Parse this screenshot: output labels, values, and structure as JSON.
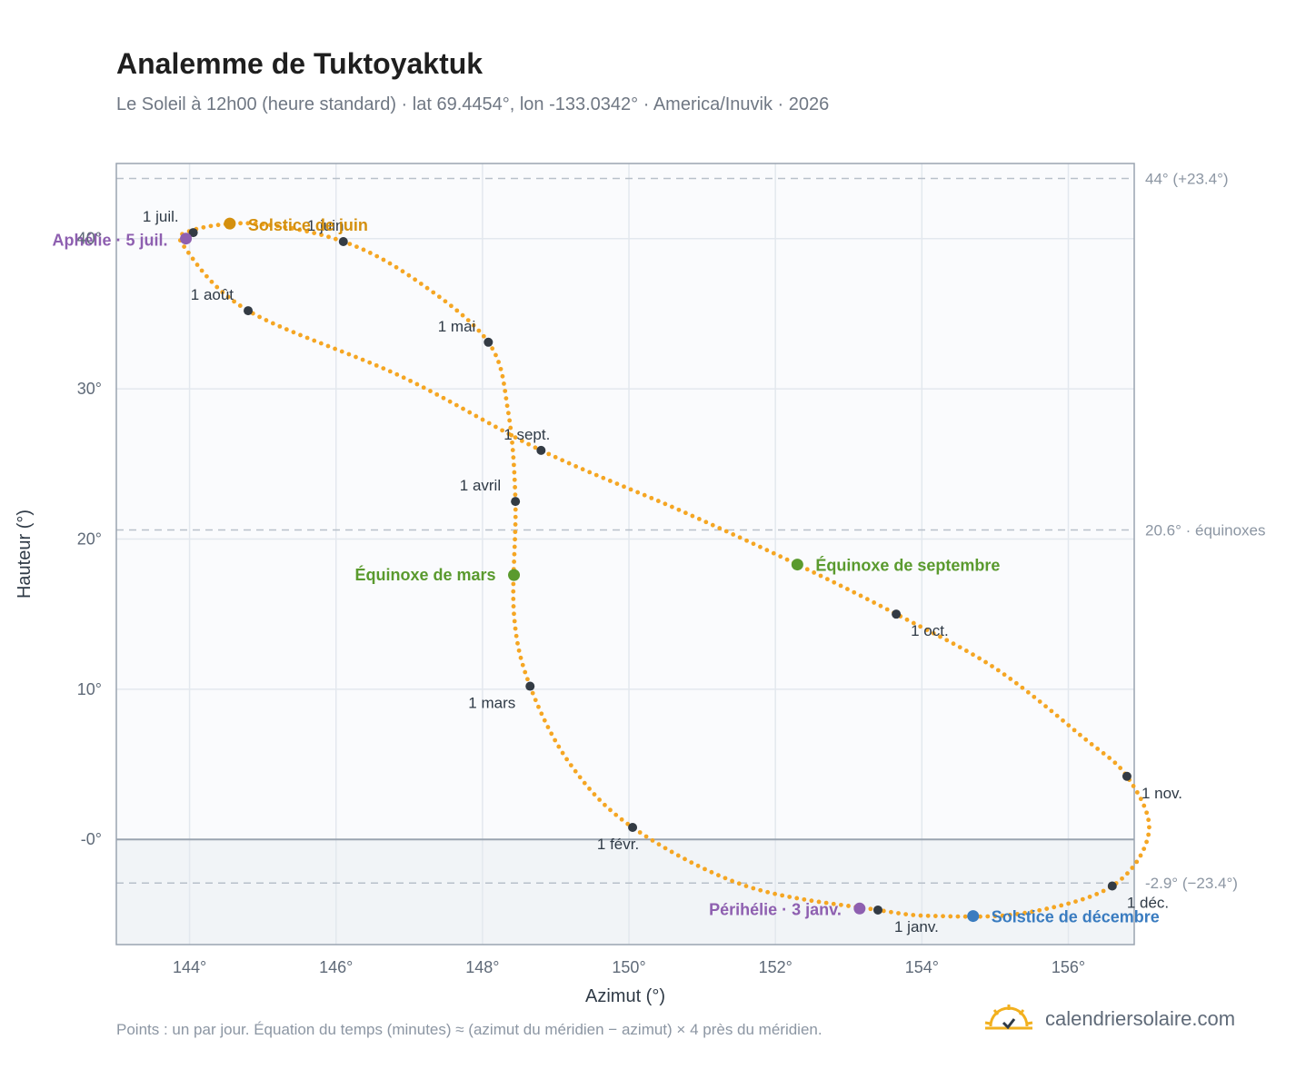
{
  "header": {
    "title": "Analemme de Tuktoyaktuk",
    "subtitle": "Le Soleil à 12h00 (heure standard) · lat 69.4454°, lon -133.0342° · America/Inuvik · 2026"
  },
  "footer": {
    "note": "Points : un par jour. Équation du temps (minutes) ≈ (azimut du méridien − azimut) × 4 près du méridien.",
    "brand": "calendriersolaire.com"
  },
  "colors": {
    "curve": "#f5a623",
    "month_point": "#333b44",
    "equinox": "#5a9a2e",
    "june_solstice": "#d4900e",
    "december_solstice": "#3a7cc0",
    "aphelion_perihelion": "#8e5fb0",
    "grid": "#e3e8ee",
    "frame": "#9aa4b0",
    "below_horizon": "#f1f4f7",
    "plot_bg": "#fafbfd"
  },
  "chart_data": {
    "type": "scatter",
    "title": "Analemme de Tuktoyaktuk",
    "xlabel": "Azimut (°)",
    "ylabel": "Hauteur (°)",
    "xlim": [
      143.0,
      156.9
    ],
    "ylim": [
      -7.0,
      45.0
    ],
    "x_ticks": [
      144,
      146,
      148,
      150,
      152,
      154,
      156
    ],
    "x_tick_labels": [
      "144°",
      "146°",
      "148°",
      "150°",
      "152°",
      "154°",
      "156°"
    ],
    "y_ticks": [
      0,
      10,
      20,
      30,
      40
    ],
    "y_tick_labels": [
      "-0°",
      "10°",
      "20°",
      "30°",
      "40°"
    ],
    "grid": true,
    "horizon": 0,
    "reference_lines": [
      {
        "y": 44.0,
        "label": "44° (+23.4°)"
      },
      {
        "y": 20.6,
        "label": "20.6° · équinoxes"
      },
      {
        "y": -2.9,
        "label": "-2.9° (−23.4°)"
      }
    ],
    "curve_anchors": [
      {
        "az": 153.4,
        "alt": -4.7
      },
      {
        "az": 151.6,
        "alt": -3.1
      },
      {
        "az": 150.05,
        "alt": 0.8
      },
      {
        "az": 149.2,
        "alt": 5.0
      },
      {
        "az": 148.65,
        "alt": 10.2
      },
      {
        "az": 148.43,
        "alt": 15.0
      },
      {
        "az": 148.45,
        "alt": 22.5
      },
      {
        "az": 148.35,
        "alt": 28.5
      },
      {
        "az": 148.08,
        "alt": 33.1
      },
      {
        "az": 147.1,
        "alt": 37.2
      },
      {
        "az": 146.1,
        "alt": 39.8
      },
      {
        "az": 144.9,
        "alt": 41.0
      },
      {
        "az": 144.0,
        "alt": 40.5
      },
      {
        "az": 143.95,
        "alt": 39.3
      },
      {
        "az": 144.8,
        "alt": 35.2
      },
      {
        "az": 146.9,
        "alt": 30.8
      },
      {
        "az": 148.8,
        "alt": 25.9
      },
      {
        "az": 150.7,
        "alt": 21.9
      },
      {
        "az": 152.3,
        "alt": 18.3
      },
      {
        "az": 153.65,
        "alt": 15.0
      },
      {
        "az": 155.0,
        "alt": 11.4
      },
      {
        "az": 156.2,
        "alt": 6.8
      },
      {
        "az": 156.8,
        "alt": 4.2
      },
      {
        "az": 157.1,
        "alt": 0.5
      },
      {
        "az": 156.6,
        "alt": -3.1
      },
      {
        "az": 155.4,
        "alt": -4.9
      },
      {
        "az": 154.2,
        "alt": -5.1
      },
      {
        "az": 153.4,
        "alt": -4.7
      }
    ],
    "month_points": [
      {
        "label": "1 janv.",
        "az": 153.4,
        "alt": -4.7
      },
      {
        "label": "1 févr.",
        "az": 150.05,
        "alt": 0.8
      },
      {
        "label": "1 mars",
        "az": 148.65,
        "alt": 10.2
      },
      {
        "label": "1 avril",
        "az": 148.45,
        "alt": 22.5
      },
      {
        "label": "1 mai",
        "az": 148.08,
        "alt": 33.1
      },
      {
        "label": "1 juin",
        "az": 146.1,
        "alt": 39.8
      },
      {
        "label": "1 juil.",
        "az": 144.05,
        "alt": 40.4
      },
      {
        "label": "1 août",
        "az": 144.8,
        "alt": 35.2
      },
      {
        "label": "1 sept.",
        "az": 148.8,
        "alt": 25.9
      },
      {
        "label": "1 oct.",
        "az": 153.65,
        "alt": 15.0
      },
      {
        "label": "1 nov.",
        "az": 156.8,
        "alt": 4.2
      },
      {
        "label": "1 déc.",
        "az": 156.6,
        "alt": -3.1
      }
    ],
    "events": [
      {
        "label": "Équinoxe de mars",
        "az": 148.43,
        "alt": 17.6,
        "color_key": "equinox"
      },
      {
        "label": "Équinoxe de septembre",
        "az": 152.3,
        "alt": 18.3,
        "color_key": "equinox"
      },
      {
        "label": "Solstice de juin",
        "az": 144.55,
        "alt": 41.0,
        "color_key": "june_solstice"
      },
      {
        "label": "Solstice de décembre",
        "az": 154.7,
        "alt": -5.1,
        "color_key": "december_solstice"
      },
      {
        "label": "Aphélie · 5 juil.",
        "az": 143.95,
        "alt": 40.0,
        "color_key": "aphelion_perihelion"
      },
      {
        "label": "Périhélie · 3 janv.",
        "az": 153.15,
        "alt": -4.6,
        "color_key": "aphelion_perihelion"
      }
    ]
  }
}
